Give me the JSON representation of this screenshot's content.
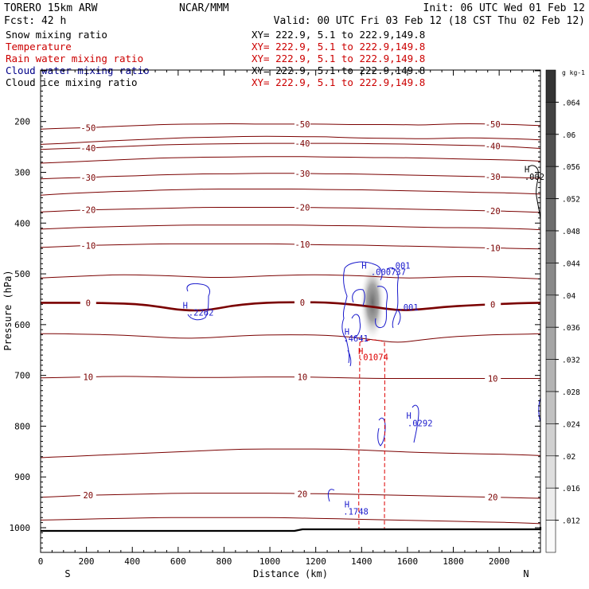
{
  "header": {
    "model": "TORERO  15km ARW",
    "forecast": "Fcst:   42 h",
    "center": "NCAR/MMM",
    "init": "Init: 06 UTC Wed 01 Feb 12",
    "valid": "Valid: 00 UTC Fri 03 Feb 12 (18 CST Thu 02 Feb 12)"
  },
  "fields": [
    {
      "name": "Snow mixing ratio",
      "xy": "XY= 222.9,  5.1 to 222.9,149.8",
      "color": "#000000"
    },
    {
      "name": "Temperature",
      "xy": "XY= 222.9,  5.1 to 222.9,149.8",
      "color": "#cc0000"
    },
    {
      "name": "Rain water mixing ratio",
      "xy": "XY= 222.9,  5.1 to 222.9,149.8",
      "color": "#cc0000"
    },
    {
      "name": "Cloud water mixing ratio",
      "xy": "XY= 222.9,  5.1 to 222.9,149.8",
      "color": "#000088"
    },
    {
      "name": "Cloud ice mixing ratio",
      "xy": "XY= 222.9,  5.1 to 222.9,149.8",
      "color": "#000000"
    }
  ],
  "chart_data": {
    "type": "contour-cross-section",
    "xlabel": "Distance (km)",
    "ylabel": "Pressure (hPa)",
    "xlim": [
      0,
      2180
    ],
    "ylim": [
      1050,
      100
    ],
    "xticks": [
      0,
      200,
      400,
      600,
      800,
      1000,
      1200,
      1400,
      1600,
      1800,
      2000
    ],
    "yticks": [
      200,
      300,
      400,
      500,
      600,
      700,
      800,
      900,
      1000
    ],
    "left_end_label": "S",
    "right_end_label": "N",
    "temperature_contours": [
      {
        "value": -50,
        "label": "-50",
        "p": [
          215,
          213,
          212,
          210,
          208,
          206,
          205,
          205,
          204,
          205,
          205,
          205,
          205,
          206,
          206,
          206,
          207,
          205,
          204,
          205,
          206,
          208
        ]
      },
      {
        "value": -45,
        "label": "",
        "p": [
          245,
          243,
          240,
          238,
          236,
          234,
          232,
          231,
          230,
          229,
          229,
          230,
          230,
          232,
          233,
          233,
          234,
          233,
          232,
          233,
          234,
          236
        ]
      },
      {
        "value": -40,
        "label": "-40",
        "p": [
          255,
          253,
          252,
          250,
          248,
          246,
          245,
          244,
          244,
          243,
          243,
          243,
          243,
          243,
          244,
          244,
          245,
          246,
          247,
          248,
          250,
          253
        ]
      },
      {
        "value": -35,
        "label": "",
        "p": [
          282,
          280,
          278,
          276,
          274,
          272,
          271,
          270,
          270,
          269,
          269,
          269,
          270,
          270,
          271,
          271,
          272,
          273,
          274,
          275,
          276,
          278
        ]
      },
      {
        "value": -30,
        "label": "-30",
        "p": [
          313,
          311,
          310,
          308,
          307,
          305,
          304,
          303,
          303,
          302,
          302,
          302,
          303,
          303,
          304,
          305,
          306,
          307,
          308,
          309,
          310,
          312
        ]
      },
      {
        "value": -25,
        "label": "",
        "p": [
          345,
          342,
          340,
          338,
          337,
          335,
          334,
          333,
          333,
          333,
          333,
          333,
          334,
          334,
          335,
          336,
          337,
          338,
          339,
          340,
          341,
          343
        ]
      },
      {
        "value": -20,
        "label": "-20",
        "p": [
          378,
          376,
          374,
          373,
          372,
          371,
          370,
          369,
          369,
          369,
          369,
          369,
          370,
          370,
          371,
          372,
          373,
          374,
          375,
          376,
          377,
          379
        ]
      },
      {
        "value": -15,
        "label": "",
        "p": [
          412,
          410,
          408,
          407,
          406,
          405,
          404,
          404,
          404,
          404,
          404,
          404,
          405,
          405,
          406,
          407,
          408,
          409,
          409,
          410,
          411,
          413
        ]
      },
      {
        "value": -10,
        "label": "-10",
        "p": [
          448,
          446,
          444,
          443,
          442,
          441,
          441,
          441,
          441,
          441,
          441,
          442,
          443,
          443,
          444,
          445,
          446,
          447,
          448,
          449,
          450,
          451
        ]
      },
      {
        "value": -5,
        "label": "",
        "p": [
          508,
          506,
          504,
          502,
          502,
          503,
          505,
          507,
          507,
          505,
          503,
          502,
          502,
          503,
          505,
          508,
          508,
          506,
          505,
          506,
          508,
          510
        ]
      },
      {
        "value": 0,
        "label": "0",
        "p": [
          557,
          557,
          557,
          558,
          559,
          565,
          572,
          572,
          563,
          558,
          556,
          556,
          556,
          560,
          565,
          572,
          570,
          565,
          562,
          560,
          558,
          557
        ]
      },
      {
        "value": 5,
        "label": "",
        "p": [
          618,
          618,
          619,
          620,
          622,
          625,
          627,
          626,
          623,
          621,
          620,
          620,
          621,
          624,
          630,
          636,
          630,
          625,
          622,
          620,
          619,
          618
        ]
      },
      {
        "value": 10,
        "label": "10",
        "p": [
          705,
          704,
          703,
          702,
          702,
          703,
          704,
          704,
          704,
          703,
          703,
          703,
          704,
          705,
          706,
          706,
          706,
          706,
          706,
          706,
          706,
          706
        ]
      },
      {
        "value": 15,
        "label": "",
        "p": [
          862,
          860,
          858,
          856,
          854,
          852,
          850,
          848,
          846,
          845,
          845,
          845,
          845,
          846,
          848,
          850,
          852,
          853,
          854,
          855,
          856,
          858
        ]
      },
      {
        "value": 20,
        "label": "20",
        "p": [
          940,
          938,
          936,
          935,
          934,
          933,
          932,
          932,
          932,
          932,
          932,
          933,
          933,
          934,
          935,
          936,
          937,
          938,
          939,
          940,
          941,
          942
        ]
      },
      {
        "value": 25,
        "label": "",
        "p": [
          985,
          984,
          983,
          982,
          981,
          980,
          980,
          980,
          980,
          980,
          980,
          981,
          982,
          983,
          984,
          985,
          986,
          987,
          988,
          989,
          990,
          992
        ]
      }
    ],
    "cloud_water_labels": [
      {
        "text": "H",
        "x": 620,
        "p": 568
      },
      {
        "text": ".2262",
        "x": 645,
        "p": 582
      },
      {
        "text": "H",
        "x": 1400,
        "p": 490
      },
      {
        "text": ".000737",
        "x": 1440,
        "p": 502
      },
      {
        "text": ".001",
        "x": 1525,
        "p": 490
      },
      {
        "text": ".001",
        "x": 1560,
        "p": 572
      },
      {
        "text": "H",
        "x": 1325,
        "p": 620
      },
      {
        "text": ".4641",
        "x": 1320,
        "p": 633
      },
      {
        "text": "H",
        "x": 1595,
        "p": 785
      },
      {
        "text": ".0292",
        "x": 1600,
        "p": 800
      },
      {
        "text": "H",
        "x": 1325,
        "p": 960
      },
      {
        "text": ".1748",
        "x": 1320,
        "p": 974
      }
    ],
    "rain_labels": [
      {
        "text": "H",
        "x": 1385,
        "p": 658
      },
      {
        "text": ".01074",
        "x": 1385,
        "p": 670
      }
    ],
    "ice_labels": [
      {
        "text": "H",
        "x": 2110,
        "p": 300
      },
      {
        "text": ".002",
        "x": 2110,
        "p": 315
      }
    ],
    "snow_colorbar": {
      "unit": "g kg-1",
      "min": 0.012,
      "max": 0.068,
      "ticks": [
        ".064",
        ".06",
        ".056",
        ".052",
        ".048",
        ".044",
        ".04",
        ".036",
        ".032",
        ".028",
        ".024",
        ".02",
        ".016",
        ".012"
      ]
    }
  }
}
